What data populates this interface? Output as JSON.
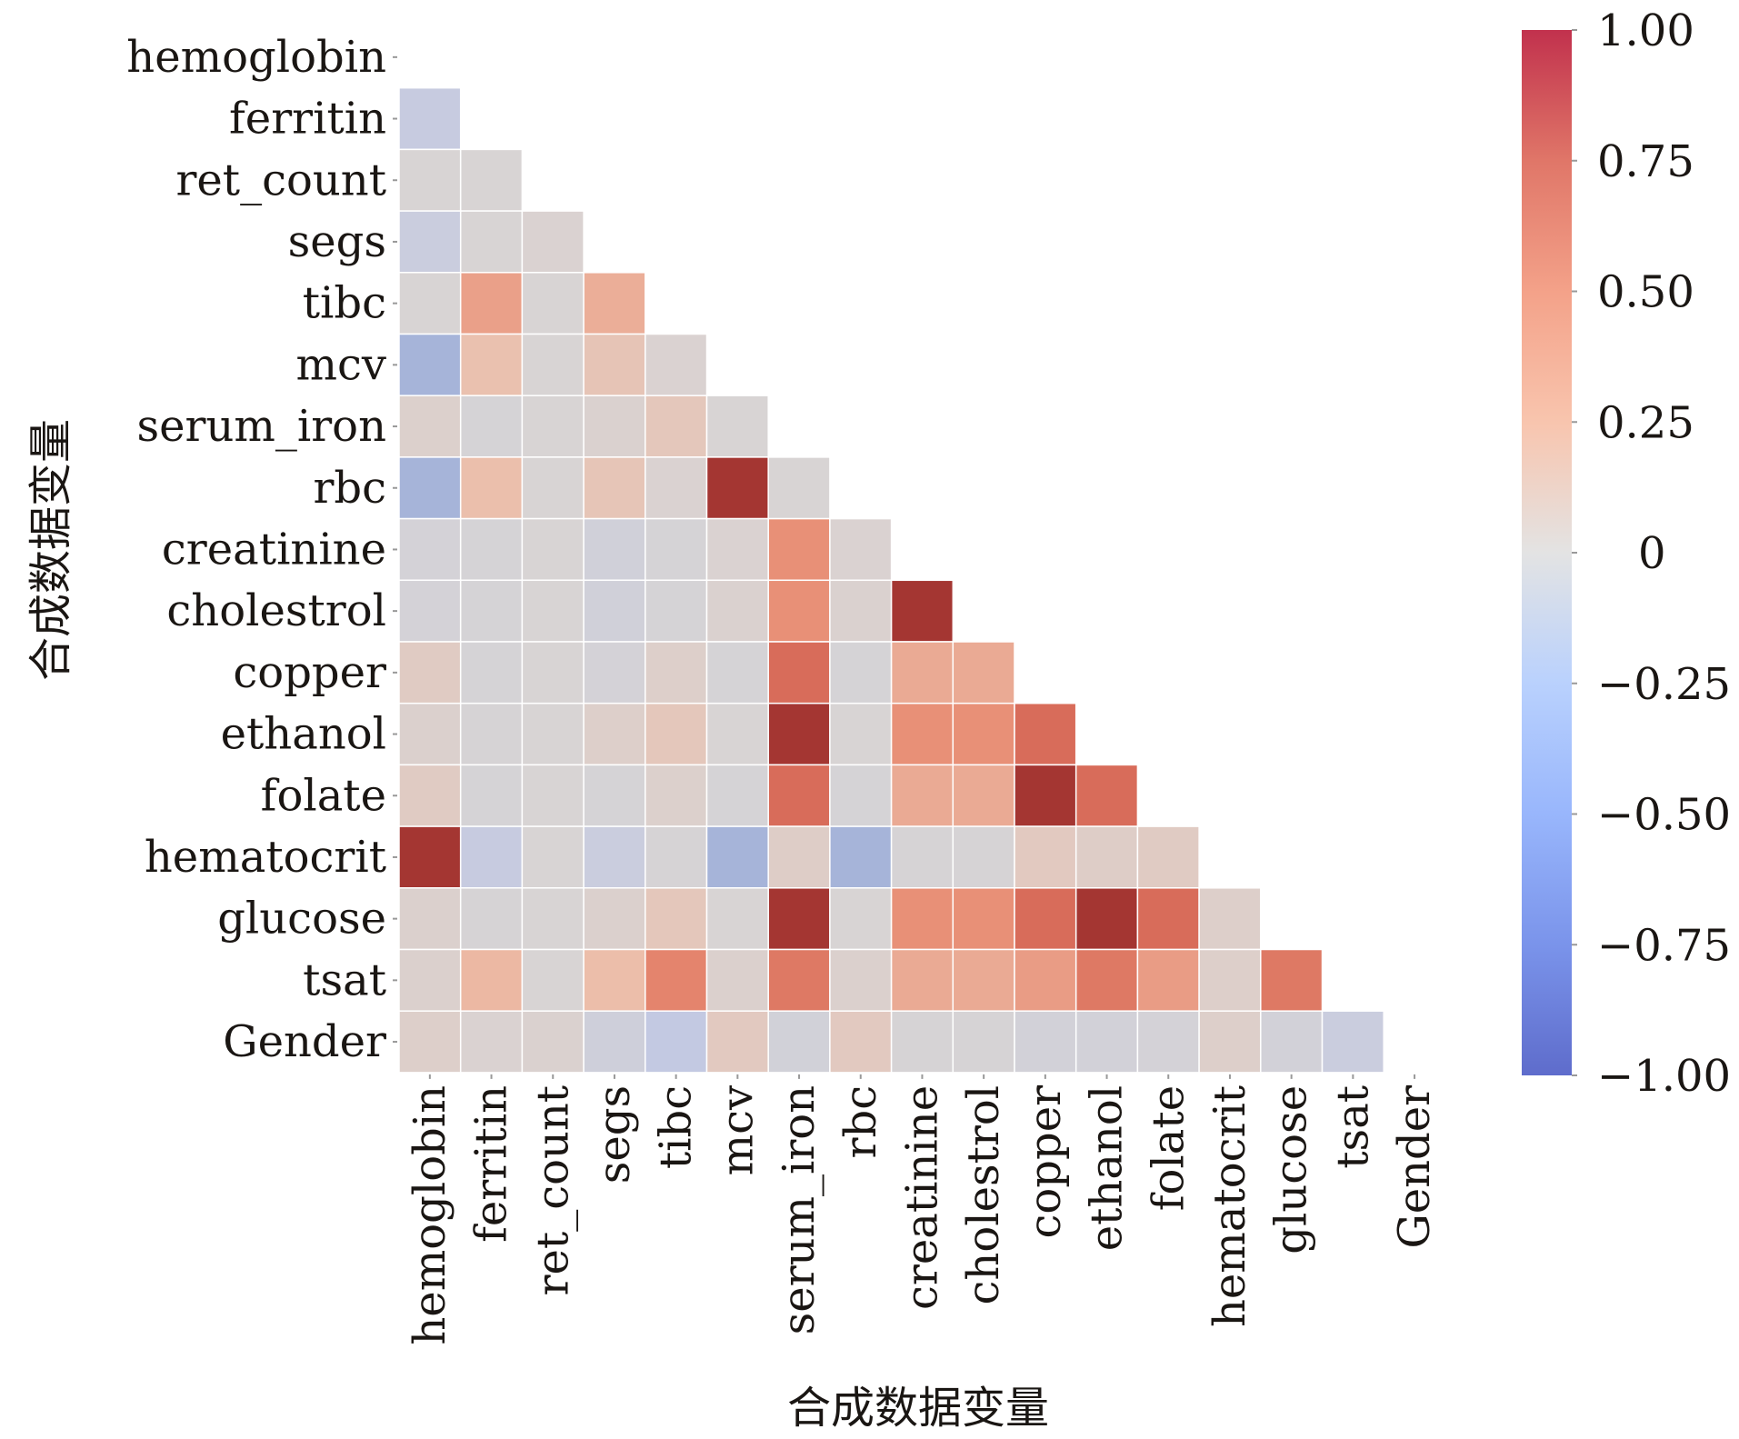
{
  "chart_data": {
    "type": "heatmap",
    "title": "",
    "xlabel": "合成数据变量",
    "ylabel": "合成数据变量",
    "mask": "upper-triangle-including-diagonal",
    "colormap": "coolwarm",
    "vmin": -1.0,
    "vmax": 1.0,
    "colorbar": {
      "placement": "right",
      "ticks": [
        1.0,
        0.75,
        0.5,
        0.25,
        0,
        -0.25,
        -0.5,
        -0.75,
        -1.0
      ],
      "tick_labels": [
        "1.00",
        "0.75",
        "0.50",
        "0.25",
        "0",
        "−0.25",
        "−0.50",
        "−0.75",
        "−1.00"
      ]
    },
    "variables": [
      "hemoglobin",
      "ferritin",
      "ret_count",
      "segs",
      "tibc",
      "mcv",
      "serum_iron",
      "rbc",
      "creatinine",
      "cholestrol",
      "copper",
      "ethanol",
      "folate",
      "hematocrit",
      "glucose",
      "tsat",
      "Gender"
    ],
    "matrix": [
      [],
      [
        -0.18
      ],
      [
        0.0,
        0.0
      ],
      [
        -0.15,
        0.0,
        0.02
      ],
      [
        0.0,
        0.4,
        0.0,
        0.33
      ],
      [
        -0.4,
        0.22,
        0.0,
        0.18,
        0.02
      ],
      [
        0.05,
        -0.03,
        0.0,
        0.03,
        0.15,
        0.0
      ],
      [
        -0.4,
        0.24,
        0.0,
        0.17,
        0.02,
        0.97,
        0.0
      ],
      [
        -0.04,
        -0.03,
        0.0,
        -0.08,
        -0.03,
        0.02,
        0.48,
        0.02
      ],
      [
        -0.04,
        -0.03,
        0.0,
        -0.08,
        -0.03,
        0.03,
        0.48,
        0.03,
        0.97
      ],
      [
        0.1,
        -0.03,
        0.0,
        -0.04,
        0.06,
        -0.03,
        0.7,
        -0.03,
        0.35,
        0.35
      ],
      [
        0.04,
        -0.02,
        0.0,
        0.06,
        0.15,
        0.0,
        0.97,
        0.0,
        0.48,
        0.48,
        0.7
      ],
      [
        0.1,
        -0.03,
        0.0,
        -0.03,
        0.05,
        -0.03,
        0.7,
        -0.03,
        0.35,
        0.35,
        0.97,
        0.7
      ],
      [
        0.97,
        -0.18,
        0.0,
        -0.15,
        -0.02,
        -0.4,
        0.08,
        -0.4,
        -0.02,
        -0.02,
        0.12,
        0.08,
        0.1
      ],
      [
        0.04,
        -0.02,
        0.0,
        0.04,
        0.15,
        0.0,
        0.97,
        0.0,
        0.48,
        0.48,
        0.7,
        0.97,
        0.7,
        0.06
      ],
      [
        0.04,
        0.28,
        0.0,
        0.25,
        0.55,
        0.04,
        0.62,
        0.04,
        0.35,
        0.35,
        0.42,
        0.62,
        0.42,
        0.06,
        0.62
      ],
      [
        0.06,
        0.02,
        0.03,
        -0.1,
        -0.22,
        0.12,
        -0.07,
        0.12,
        -0.02,
        -0.02,
        -0.06,
        -0.06,
        -0.04,
        0.06,
        -0.06,
        -0.15
      ]
    ]
  }
}
